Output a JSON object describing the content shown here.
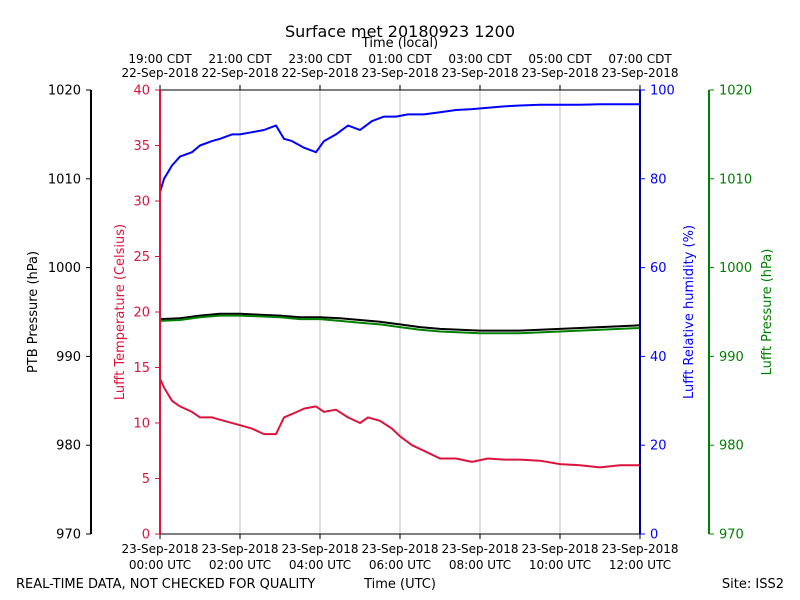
{
  "chart_data": {
    "type": "line",
    "title": "Surface met 20180923 1200",
    "top_axis_label": "Time (local)",
    "bottom_axis_label": "Time (UTC)",
    "footer_left": "REAL-TIME DATA, NOT CHECKED FOR QUALITY",
    "footer_right": "Site: ISS2",
    "x_range_hours": [
      0,
      12
    ],
    "x_ticks_hours": [
      0,
      2,
      4,
      6,
      8,
      10,
      12
    ],
    "utc_tick_labels": [
      {
        "date": "23-Sep-2018",
        "time": "00:00 UTC"
      },
      {
        "date": "23-Sep-2018",
        "time": "02:00 UTC"
      },
      {
        "date": "23-Sep-2018",
        "time": "04:00 UTC"
      },
      {
        "date": "23-Sep-2018",
        "time": "06:00 UTC"
      },
      {
        "date": "23-Sep-2018",
        "time": "08:00 UTC"
      },
      {
        "date": "23-Sep-2018",
        "time": "10:00 UTC"
      },
      {
        "date": "23-Sep-2018",
        "time": "12:00 UTC"
      }
    ],
    "local_tick_labels": [
      {
        "time": "19:00 CDT",
        "date": "22-Sep-2018"
      },
      {
        "time": "21:00 CDT",
        "date": "22-Sep-2018"
      },
      {
        "time": "23:00 CDT",
        "date": "22-Sep-2018"
      },
      {
        "time": "01:00 CDT",
        "date": "23-Sep-2018"
      },
      {
        "time": "03:00 CDT",
        "date": "23-Sep-2018"
      },
      {
        "time": "05:00 CDT",
        "date": "23-Sep-2018"
      },
      {
        "time": "07:00 CDT",
        "date": "23-Sep-2018"
      }
    ],
    "axes": {
      "ptb_pressure": {
        "label": "PTB Pressure (hPa)",
        "range": [
          970,
          1020
        ],
        "ticks": [
          970,
          980,
          990,
          1000,
          1010,
          1020
        ],
        "color": "#000000"
      },
      "temperature": {
        "label": "Lufft Temperature (Celsius)",
        "range": [
          0,
          40
        ],
        "ticks": [
          0,
          5,
          10,
          15,
          20,
          25,
          30,
          35,
          40
        ],
        "color": "#dc143c"
      },
      "humidity": {
        "label": "Lufft Relative humidity (%)",
        "range": [
          0,
          100
        ],
        "ticks": [
          0,
          20,
          40,
          60,
          80,
          100
        ],
        "color": "#0000ff"
      },
      "lufft_pressure": {
        "label": "Lufft Pressure (hPa)",
        "range": [
          970,
          1020
        ],
        "ticks": [
          970,
          980,
          990,
          1000,
          1010,
          1020
        ],
        "color": "#008000"
      }
    },
    "series": [
      {
        "name": "Lufft Relative humidity (%)",
        "axis": "humidity",
        "color": "#0000ff",
        "x": [
          0,
          0.1,
          0.3,
          0.5,
          0.8,
          1.0,
          1.3,
          1.5,
          1.8,
          2.0,
          2.3,
          2.6,
          2.9,
          3.1,
          3.3,
          3.6,
          3.9,
          4.1,
          4.4,
          4.7,
          5.0,
          5.3,
          5.6,
          5.9,
          6.2,
          6.6,
          7.0,
          7.4,
          7.8,
          8.2,
          8.6,
          9.0,
          9.5,
          10.0,
          10.5,
          11.0,
          11.5,
          12.0
        ],
        "y": [
          77,
          80,
          83,
          85,
          86,
          87.5,
          88.5,
          89,
          90,
          90,
          90.5,
          91,
          92,
          89,
          88.5,
          87,
          86,
          88.5,
          90,
          92,
          91,
          93,
          94,
          94,
          94.5,
          94.5,
          95,
          95.5,
          95.7,
          96,
          96.3,
          96.5,
          96.7,
          96.7,
          96.7,
          96.8,
          96.8,
          96.8
        ]
      },
      {
        "name": "Lufft Temperature (Celsius)",
        "axis": "temperature",
        "color": "#dc143c",
        "x": [
          0,
          0.1,
          0.3,
          0.5,
          0.8,
          1.0,
          1.3,
          1.6,
          2.0,
          2.3,
          2.6,
          2.9,
          3.1,
          3.3,
          3.6,
          3.9,
          4.1,
          4.4,
          4.7,
          5.0,
          5.2,
          5.5,
          5.8,
          6.0,
          6.3,
          6.6,
          7.0,
          7.4,
          7.8,
          8.2,
          8.6,
          9.0,
          9.5,
          10.0,
          10.5,
          11.0,
          11.5,
          12.0
        ],
        "y": [
          14,
          13.2,
          12,
          11.5,
          11,
          10.5,
          10.5,
          10.2,
          9.8,
          9.5,
          9.0,
          9.0,
          10.5,
          10.8,
          11.3,
          11.5,
          11.0,
          11.2,
          10.5,
          10.0,
          10.5,
          10.2,
          9.5,
          8.8,
          8.0,
          7.5,
          6.8,
          6.8,
          6.5,
          6.8,
          6.7,
          6.7,
          6.6,
          6.3,
          6.2,
          6.0,
          6.2,
          6.2
        ]
      },
      {
        "name": "PTB Pressure (hPa)",
        "axis": "ptb_pressure",
        "color": "#000000",
        "x": [
          0,
          0.5,
          1.0,
          1.5,
          2.0,
          2.5,
          3.0,
          3.5,
          4.0,
          4.5,
          5.0,
          5.5,
          6.0,
          6.5,
          7.0,
          7.5,
          8.0,
          8.5,
          9.0,
          9.5,
          10.0,
          10.5,
          11.0,
          11.5,
          12.0
        ],
        "y": [
          994.2,
          994.3,
          994.6,
          994.8,
          994.8,
          994.7,
          994.6,
          994.4,
          994.4,
          994.3,
          994.1,
          993.9,
          993.6,
          993.3,
          993.1,
          993.0,
          992.9,
          992.9,
          992.9,
          993.0,
          993.1,
          993.2,
          993.3,
          993.4,
          993.5
        ]
      },
      {
        "name": "Lufft Pressure (hPa)",
        "axis": "lufft_pressure",
        "color": "#008000",
        "x": [
          0,
          0.5,
          1.0,
          1.5,
          2.0,
          2.5,
          3.0,
          3.5,
          4.0,
          4.5,
          5.0,
          5.5,
          6.0,
          6.5,
          7.0,
          7.5,
          8.0,
          8.5,
          9.0,
          9.5,
          10.0,
          10.5,
          11.0,
          11.5,
          12.0
        ],
        "y": [
          994.0,
          994.1,
          994.4,
          994.6,
          994.6,
          994.5,
          994.4,
          994.2,
          994.2,
          994.0,
          993.8,
          993.6,
          993.3,
          993.0,
          992.8,
          992.7,
          992.6,
          992.6,
          992.6,
          992.7,
          992.8,
          992.9,
          993.0,
          993.1,
          993.2
        ]
      }
    ]
  }
}
